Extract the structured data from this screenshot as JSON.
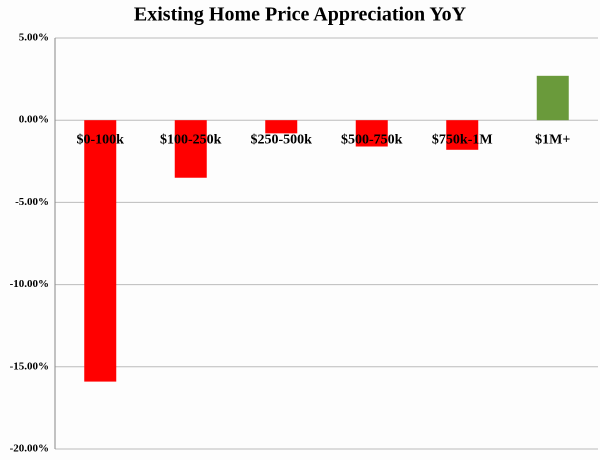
{
  "chart_data": {
    "type": "bar",
    "title": "Existing Home Price Appreciation YoY",
    "categories": [
      "$0-100k",
      "$100-250k",
      "$250-500k",
      "$500-750k",
      "$750k-1M",
      "$1M+"
    ],
    "values": [
      -15.9,
      -3.5,
      -0.8,
      -1.6,
      -1.8,
      2.7
    ],
    "colors": [
      "#ff0000",
      "#ff0000",
      "#ff0000",
      "#ff0000",
      "#ff0000",
      "#6a9a3b"
    ],
    "ylim": [
      -20,
      5
    ],
    "yticks": [
      {
        "value": -20,
        "label": "-20.00%"
      },
      {
        "value": -15,
        "label": "-15.00%"
      },
      {
        "value": -10,
        "label": "-10.00%"
      },
      {
        "value": -5,
        "label": "-5.00%"
      },
      {
        "value": 0,
        "label": "0.00%"
      },
      {
        "value": 5,
        "label": "5.00%"
      }
    ],
    "grid": true
  }
}
